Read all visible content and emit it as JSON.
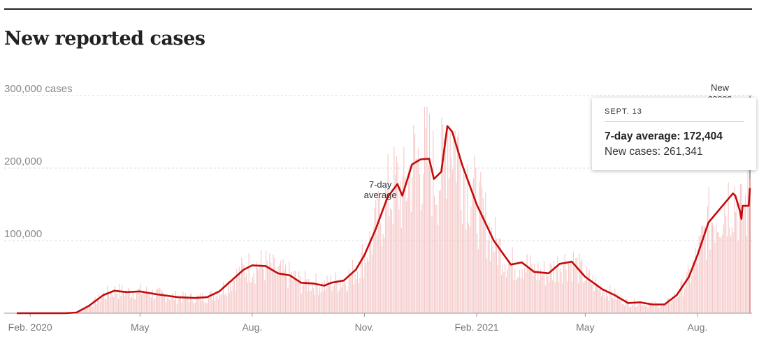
{
  "chart_data": {
    "type": "bar",
    "title": "New reported cases",
    "ylim": [
      0,
      300000
    ],
    "y_ticks": [
      {
        "value": 100000,
        "label": "100,000"
      },
      {
        "value": 200000,
        "label": "200,000"
      },
      {
        "value": 300000,
        "label": "300,000 cases"
      }
    ],
    "x_ticks": [
      {
        "date": "2020-02-01",
        "label": "Feb. 2020"
      },
      {
        "date": "2020-05-01",
        "label": "May"
      },
      {
        "date": "2020-08-01",
        "label": "Aug."
      },
      {
        "date": "2020-11-01",
        "label": "Nov."
      },
      {
        "date": "2021-02-01",
        "label": "Feb. 2021"
      },
      {
        "date": "2021-05-01",
        "label": "May"
      },
      {
        "date": "2021-08-01",
        "label": "Aug."
      }
    ],
    "date_range": [
      "2020-01-21",
      "2021-09-13"
    ],
    "series": [
      {
        "name": "7-day average",
        "label": "7-day\naverage",
        "color": "#c50a0a",
        "points": [
          [
            "2020-01-21",
            0
          ],
          [
            "2020-03-01",
            0
          ],
          [
            "2020-03-10",
            1000
          ],
          [
            "2020-03-20",
            10000
          ],
          [
            "2020-04-01",
            25000
          ],
          [
            "2020-04-10",
            31000
          ],
          [
            "2020-04-20",
            29000
          ],
          [
            "2020-05-01",
            30000
          ],
          [
            "2020-05-15",
            26000
          ],
          [
            "2020-06-01",
            22000
          ],
          [
            "2020-06-15",
            21000
          ],
          [
            "2020-06-25",
            22000
          ],
          [
            "2020-07-05",
            30000
          ],
          [
            "2020-07-15",
            45000
          ],
          [
            "2020-07-25",
            60000
          ],
          [
            "2020-08-01",
            66000
          ],
          [
            "2020-08-12",
            65000
          ],
          [
            "2020-08-22",
            55000
          ],
          [
            "2020-09-01",
            52000
          ],
          [
            "2020-09-10",
            42000
          ],
          [
            "2020-09-20",
            41000
          ],
          [
            "2020-09-29",
            38000
          ],
          [
            "2020-10-05",
            42000
          ],
          [
            "2020-10-15",
            45000
          ],
          [
            "2020-10-25",
            60000
          ],
          [
            "2020-11-01",
            80000
          ],
          [
            "2020-11-10",
            115000
          ],
          [
            "2020-11-20",
            160000
          ],
          [
            "2020-11-28",
            178000
          ],
          [
            "2020-12-02",
            162000
          ],
          [
            "2020-12-10",
            205000
          ],
          [
            "2020-12-17",
            212000
          ],
          [
            "2020-12-24",
            213000
          ],
          [
            "2020-12-28",
            185000
          ],
          [
            "2021-01-03",
            195000
          ],
          [
            "2021-01-08",
            258000
          ],
          [
            "2021-01-12",
            250000
          ],
          [
            "2021-01-20",
            205000
          ],
          [
            "2021-02-01",
            150000
          ],
          [
            "2021-02-15",
            100000
          ],
          [
            "2021-03-01",
            67000
          ],
          [
            "2021-03-10",
            70000
          ],
          [
            "2021-03-20",
            57000
          ],
          [
            "2021-04-01",
            55000
          ],
          [
            "2021-04-10",
            68000
          ],
          [
            "2021-04-20",
            71000
          ],
          [
            "2021-05-01",
            50000
          ],
          [
            "2021-05-15",
            33000
          ],
          [
            "2021-05-25",
            25000
          ],
          [
            "2021-06-05",
            14000
          ],
          [
            "2021-06-15",
            15000
          ],
          [
            "2021-06-25",
            12000
          ],
          [
            "2021-07-05",
            12000
          ],
          [
            "2021-07-15",
            25000
          ],
          [
            "2021-07-25",
            50000
          ],
          [
            "2021-08-01",
            80000
          ],
          [
            "2021-08-10",
            125000
          ],
          [
            "2021-08-20",
            145000
          ],
          [
            "2021-08-30",
            165000
          ],
          [
            "2021-09-01",
            162000
          ],
          [
            "2021-09-05",
            140000
          ],
          [
            "2021-09-06",
            130000
          ],
          [
            "2021-09-07",
            148000
          ],
          [
            "2021-09-12",
            148000
          ],
          [
            "2021-09-13",
            172404
          ]
        ]
      },
      {
        "name": "New cases",
        "label": "New\ncases",
        "color": "#f5c7c7"
      }
    ],
    "tooltip": {
      "date": "SEPT. 13",
      "avg_label": "7-day average: 172,404",
      "new_label": "New cases: 261,341",
      "avg_value": 172404,
      "new_value": 261341
    }
  }
}
